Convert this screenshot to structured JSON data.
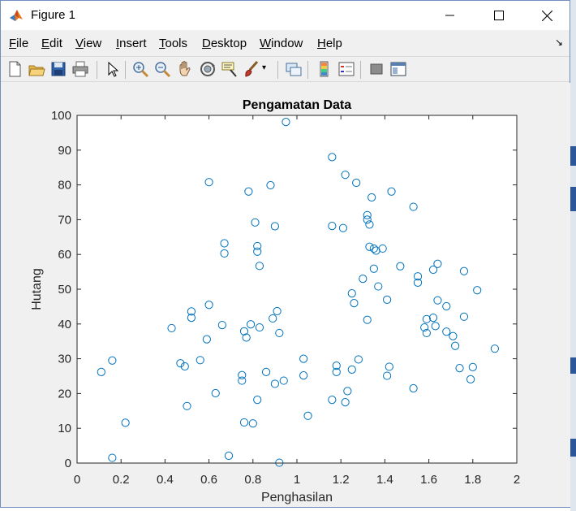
{
  "window": {
    "title": "Figure 1"
  },
  "menu": {
    "items": [
      "File",
      "Edit",
      "View",
      "Insert",
      "Tools",
      "Desktop",
      "Window",
      "Help"
    ]
  },
  "toolbar": {
    "icons": [
      "new-figure-icon",
      "open-file-icon",
      "save-icon",
      "print-icon",
      "edit-plot-icon",
      "zoom-in-icon",
      "zoom-out-icon",
      "pan-icon",
      "rotate-3d-icon",
      "data-cursor-icon",
      "brush-icon",
      "link-plot-icon",
      "colorbar-icon",
      "legend-icon",
      "hide-plot-tools-icon",
      "show-plot-tools-icon"
    ]
  },
  "colors": {
    "marker": "#0072bd",
    "axes_background": "#ffffff",
    "figure_background": "#f0f0f0"
  },
  "chart_data": {
    "type": "scatter",
    "title": "Pengamatan Data",
    "xlabel": "Penghasilan",
    "ylabel": "Hutang",
    "xlim": [
      0,
      2
    ],
    "ylim": [
      0,
      100
    ],
    "xticks": [
      "0",
      "0.2",
      "0.4",
      "0.6",
      "0.8",
      "1",
      "1.2",
      "1.4",
      "1.6",
      "1.8",
      "2"
    ],
    "yticks": [
      "0",
      "10",
      "20",
      "30",
      "40",
      "50",
      "60",
      "70",
      "80",
      "90",
      "100"
    ],
    "grid": false,
    "marker": "circle-open",
    "series": [
      {
        "points": [
          [
            0.11,
            26.2
          ],
          [
            0.16,
            29.5
          ],
          [
            0.16,
            1.5
          ],
          [
            0.22,
            11.6
          ],
          [
            0.43,
            38.8
          ],
          [
            0.47,
            28.7
          ],
          [
            0.49,
            27.8
          ],
          [
            0.5,
            16.4
          ],
          [
            0.52,
            43.6
          ],
          [
            0.52,
            41.8
          ],
          [
            0.56,
            29.6
          ],
          [
            0.59,
            35.6
          ],
          [
            0.6,
            45.5
          ],
          [
            0.6,
            80.8
          ],
          [
            0.63,
            20.1
          ],
          [
            0.66,
            39.7
          ],
          [
            0.67,
            63.2
          ],
          [
            0.67,
            60.3
          ],
          [
            0.69,
            2.1
          ],
          [
            0.75,
            25.3
          ],
          [
            0.75,
            23.7
          ],
          [
            0.76,
            37.9
          ],
          [
            0.76,
            11.7
          ],
          [
            0.77,
            36.1
          ],
          [
            0.78,
            78.1
          ],
          [
            0.79,
            39.9
          ],
          [
            0.8,
            11.4
          ],
          [
            0.81,
            69.2
          ],
          [
            0.82,
            62.4
          ],
          [
            0.82,
            60.8
          ],
          [
            0.82,
            18.2
          ],
          [
            0.83,
            39
          ],
          [
            0.83,
            56.7
          ],
          [
            0.86,
            26.2
          ],
          [
            0.88,
            79.9
          ],
          [
            0.89,
            41.6
          ],
          [
            0.9,
            22.8
          ],
          [
            0.9,
            68.1
          ],
          [
            0.91,
            43.7
          ],
          [
            0.92,
            37.4
          ],
          [
            0.92,
            0.1
          ],
          [
            0.94,
            23.7
          ],
          [
            0.95,
            98.1
          ],
          [
            1.03,
            30
          ],
          [
            1.03,
            25.2
          ],
          [
            1.05,
            13.6
          ],
          [
            1.16,
            68.2
          ],
          [
            1.16,
            18.2
          ],
          [
            1.16,
            88
          ],
          [
            1.18,
            26.2
          ],
          [
            1.18,
            28
          ],
          [
            1.21,
            67.6
          ],
          [
            1.22,
            82.9
          ],
          [
            1.22,
            17.5
          ],
          [
            1.23,
            20.7
          ],
          [
            1.25,
            48.8
          ],
          [
            1.25,
            26.9
          ],
          [
            1.26,
            46
          ],
          [
            1.27,
            80.6
          ],
          [
            1.28,
            29.8
          ],
          [
            1.3,
            53
          ],
          [
            1.32,
            41.2
          ],
          [
            1.32,
            71.3
          ],
          [
            1.32,
            70
          ],
          [
            1.33,
            68.6
          ],
          [
            1.33,
            62.2
          ],
          [
            1.34,
            76.4
          ],
          [
            1.35,
            55.9
          ],
          [
            1.35,
            61.7
          ],
          [
            1.36,
            61.1
          ],
          [
            1.37,
            50.8
          ],
          [
            1.39,
            61.7
          ],
          [
            1.41,
            47
          ],
          [
            1.41,
            25.1
          ],
          [
            1.42,
            27.7
          ],
          [
            1.43,
            78.1
          ],
          [
            1.47,
            56.6
          ],
          [
            1.53,
            21.5
          ],
          [
            1.53,
            73.7
          ],
          [
            1.55,
            53.7
          ],
          [
            1.55,
            51.9
          ],
          [
            1.58,
            39
          ],
          [
            1.59,
            41.4
          ],
          [
            1.59,
            37.4
          ],
          [
            1.62,
            55.6
          ],
          [
            1.62,
            41.8
          ],
          [
            1.63,
            39.4
          ],
          [
            1.64,
            57.3
          ],
          [
            1.64,
            46.8
          ],
          [
            1.68,
            37.8
          ],
          [
            1.68,
            45.1
          ],
          [
            1.71,
            36.5
          ],
          [
            1.72,
            33.7
          ],
          [
            1.74,
            27.3
          ],
          [
            1.76,
            42.1
          ],
          [
            1.76,
            55.2
          ],
          [
            1.79,
            24.1
          ],
          [
            1.8,
            27.6
          ],
          [
            1.82,
            49.7
          ],
          [
            1.9,
            32.9
          ]
        ]
      }
    ]
  }
}
